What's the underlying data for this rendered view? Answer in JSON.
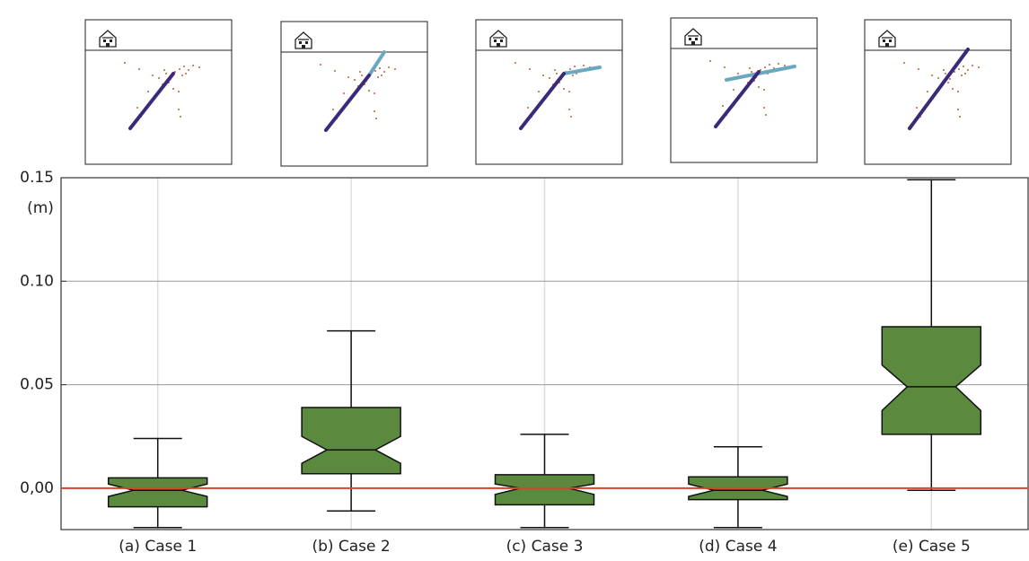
{
  "chart_data": {
    "type": "box",
    "y_label": "(m)",
    "categories": [
      "(a) Case 1",
      "(b) Case 2",
      "(c) Case 3",
      "(d) Case 4",
      "(e) Case 5"
    ],
    "boxes": [
      {
        "low": -0.019,
        "q1": -0.009,
        "notch_low": -0.004,
        "median": -0.001,
        "notch_high": 0.002,
        "q3": 0.005,
        "high": 0.024
      },
      {
        "low": -0.011,
        "q1": 0.007,
        "notch_low": 0.012,
        "median": 0.0185,
        "notch_high": 0.025,
        "q3": 0.039,
        "high": 0.076
      },
      {
        "low": -0.019,
        "q1": -0.008,
        "notch_low": -0.003,
        "median": 0,
        "notch_high": 0.002,
        "q3": 0.0065,
        "high": 0.026
      },
      {
        "low": -0.019,
        "q1": -0.0055,
        "notch_low": -0.004,
        "median": -0.001,
        "notch_high": 0.002,
        "q3": 0.0055,
        "high": 0.02
      },
      {
        "low": -0.001,
        "q1": 0.026,
        "notch_low": 0.0375,
        "median": 0.049,
        "notch_high": 0.0595,
        "q3": 0.078,
        "high": 0.149
      }
    ],
    "color": "#5b8a3f",
    "reference_line": {
      "value": 0,
      "color": "#e0402a"
    },
    "ylim": [
      -0.02,
      0.15
    ],
    "yticks": [
      {
        "value": 0,
        "label": "0,00"
      },
      0.05,
      {
        "value": 0.1,
        "label": "0.10"
      },
      0.15
    ],
    "grid": true
  }
}
